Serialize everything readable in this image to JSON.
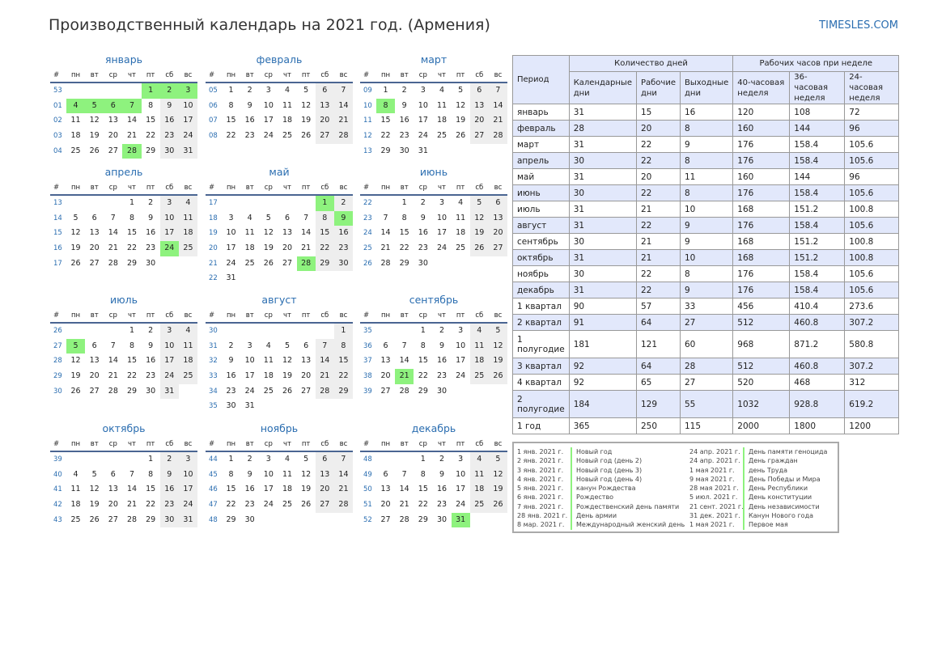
{
  "page": {
    "title": "Производственный календарь на 2021 год. (Армения)",
    "brand": "TIMESLES.COM"
  },
  "calendar": {
    "weekday_header": [
      "#",
      "пн",
      "вт",
      "ср",
      "чт",
      "пт",
      "сб",
      "вс"
    ],
    "months": [
      {
        "name": "январь",
        "rows": [
          {
            "wk": "53",
            "days": [
              "",
              "",
              "",
              "",
              "1",
              "2",
              "3"
            ]
          },
          {
            "wk": "01",
            "days": [
              "4",
              "5",
              "6",
              "7",
              "8",
              "9",
              "10"
            ]
          },
          {
            "wk": "02",
            "days": [
              "11",
              "12",
              "13",
              "14",
              "15",
              "16",
              "17"
            ]
          },
          {
            "wk": "03",
            "days": [
              "18",
              "19",
              "20",
              "21",
              "22",
              "23",
              "24"
            ]
          },
          {
            "wk": "04",
            "days": [
              "25",
              "26",
              "27",
              "28",
              "29",
              "30",
              "31"
            ]
          }
        ],
        "holidays": [
          "1",
          "2",
          "3",
          "4",
          "5",
          "6",
          "7",
          "28"
        ]
      },
      {
        "name": "февраль",
        "rows": [
          {
            "wk": "05",
            "days": [
              "1",
              "2",
              "3",
              "4",
              "5",
              "6",
              "7"
            ]
          },
          {
            "wk": "06",
            "days": [
              "8",
              "9",
              "10",
              "11",
              "12",
              "13",
              "14"
            ]
          },
          {
            "wk": "07",
            "days": [
              "15",
              "16",
              "17",
              "18",
              "19",
              "20",
              "21"
            ]
          },
          {
            "wk": "08",
            "days": [
              "22",
              "23",
              "24",
              "25",
              "26",
              "27",
              "28"
            ]
          }
        ],
        "holidays": []
      },
      {
        "name": "март",
        "rows": [
          {
            "wk": "09",
            "days": [
              "1",
              "2",
              "3",
              "4",
              "5",
              "6",
              "7"
            ]
          },
          {
            "wk": "10",
            "days": [
              "8",
              "9",
              "10",
              "11",
              "12",
              "13",
              "14"
            ]
          },
          {
            "wk": "11",
            "days": [
              "15",
              "16",
              "17",
              "18",
              "19",
              "20",
              "21"
            ]
          },
          {
            "wk": "12",
            "days": [
              "22",
              "23",
              "24",
              "25",
              "26",
              "27",
              "28"
            ]
          },
          {
            "wk": "13",
            "days": [
              "29",
              "30",
              "31",
              "",
              "",
              "",
              ""
            ]
          }
        ],
        "holidays": [
          "8"
        ]
      },
      {
        "name": "апрель",
        "rows": [
          {
            "wk": "13",
            "days": [
              "",
              "",
              "",
              "1",
              "2",
              "3",
              "4"
            ]
          },
          {
            "wk": "14",
            "days": [
              "5",
              "6",
              "7",
              "8",
              "9",
              "10",
              "11"
            ]
          },
          {
            "wk": "15",
            "days": [
              "12",
              "13",
              "14",
              "15",
              "16",
              "17",
              "18"
            ]
          },
          {
            "wk": "16",
            "days": [
              "19",
              "20",
              "21",
              "22",
              "23",
              "24",
              "25"
            ]
          },
          {
            "wk": "17",
            "days": [
              "26",
              "27",
              "28",
              "29",
              "30",
              "",
              ""
            ]
          }
        ],
        "holidays": [
          "24"
        ]
      },
      {
        "name": "май",
        "rows": [
          {
            "wk": "17",
            "days": [
              "",
              "",
              "",
              "",
              "",
              "1",
              "2"
            ]
          },
          {
            "wk": "18",
            "days": [
              "3",
              "4",
              "5",
              "6",
              "7",
              "8",
              "9"
            ]
          },
          {
            "wk": "19",
            "days": [
              "10",
              "11",
              "12",
              "13",
              "14",
              "15",
              "16"
            ]
          },
          {
            "wk": "20",
            "days": [
              "17",
              "18",
              "19",
              "20",
              "21",
              "22",
              "23"
            ]
          },
          {
            "wk": "21",
            "days": [
              "24",
              "25",
              "26",
              "27",
              "28",
              "29",
              "30"
            ]
          },
          {
            "wk": "22",
            "days": [
              "31",
              "",
              "",
              "",
              "",
              "",
              ""
            ]
          }
        ],
        "holidays": [
          "1",
          "9",
          "28"
        ]
      },
      {
        "name": "июнь",
        "rows": [
          {
            "wk": "22",
            "days": [
              "",
              "1",
              "2",
              "3",
              "4",
              "5",
              "6"
            ]
          },
          {
            "wk": "23",
            "days": [
              "7",
              "8",
              "9",
              "10",
              "11",
              "12",
              "13"
            ]
          },
          {
            "wk": "24",
            "days": [
              "14",
              "15",
              "16",
              "17",
              "18",
              "19",
              "20"
            ]
          },
          {
            "wk": "25",
            "days": [
              "21",
              "22",
              "23",
              "24",
              "25",
              "26",
              "27"
            ]
          },
          {
            "wk": "26",
            "days": [
              "28",
              "29",
              "30",
              "",
              "",
              "",
              ""
            ]
          }
        ],
        "holidays": []
      },
      {
        "name": "июль",
        "rows": [
          {
            "wk": "26",
            "days": [
              "",
              "",
              "",
              "1",
              "2",
              "3",
              "4"
            ]
          },
          {
            "wk": "27",
            "days": [
              "5",
              "6",
              "7",
              "8",
              "9",
              "10",
              "11"
            ]
          },
          {
            "wk": "28",
            "days": [
              "12",
              "13",
              "14",
              "15",
              "16",
              "17",
              "18"
            ]
          },
          {
            "wk": "29",
            "days": [
              "19",
              "20",
              "21",
              "22",
              "23",
              "24",
              "25"
            ]
          },
          {
            "wk": "30",
            "days": [
              "26",
              "27",
              "28",
              "29",
              "30",
              "31",
              ""
            ]
          }
        ],
        "holidays": [
          "5"
        ]
      },
      {
        "name": "август",
        "rows": [
          {
            "wk": "30",
            "days": [
              "",
              "",
              "",
              "",
              "",
              "",
              "1"
            ]
          },
          {
            "wk": "31",
            "days": [
              "2",
              "3",
              "4",
              "5",
              "6",
              "7",
              "8"
            ]
          },
          {
            "wk": "32",
            "days": [
              "9",
              "10",
              "11",
              "12",
              "13",
              "14",
              "15"
            ]
          },
          {
            "wk": "33",
            "days": [
              "16",
              "17",
              "18",
              "19",
              "20",
              "21",
              "22"
            ]
          },
          {
            "wk": "34",
            "days": [
              "23",
              "24",
              "25",
              "26",
              "27",
              "28",
              "29"
            ]
          },
          {
            "wk": "35",
            "days": [
              "30",
              "31",
              "",
              "",
              "",
              "",
              ""
            ]
          }
        ],
        "holidays": []
      },
      {
        "name": "сентябрь",
        "rows": [
          {
            "wk": "35",
            "days": [
              "",
              "",
              "1",
              "2",
              "3",
              "4",
              "5"
            ]
          },
          {
            "wk": "36",
            "days": [
              "6",
              "7",
              "8",
              "9",
              "10",
              "11",
              "12"
            ]
          },
          {
            "wk": "37",
            "days": [
              "13",
              "14",
              "15",
              "16",
              "17",
              "18",
              "19"
            ]
          },
          {
            "wk": "38",
            "days": [
              "20",
              "21",
              "22",
              "23",
              "24",
              "25",
              "26"
            ]
          },
          {
            "wk": "39",
            "days": [
              "27",
              "28",
              "29",
              "30",
              "",
              "",
              ""
            ]
          }
        ],
        "holidays": [
          "21"
        ]
      },
      {
        "name": "октябрь",
        "rows": [
          {
            "wk": "39",
            "days": [
              "",
              "",
              "",
              "",
              "1",
              "2",
              "3"
            ]
          },
          {
            "wk": "40",
            "days": [
              "4",
              "5",
              "6",
              "7",
              "8",
              "9",
              "10"
            ]
          },
          {
            "wk": "41",
            "days": [
              "11",
              "12",
              "13",
              "14",
              "15",
              "16",
              "17"
            ]
          },
          {
            "wk": "42",
            "days": [
              "18",
              "19",
              "20",
              "21",
              "22",
              "23",
              "24"
            ]
          },
          {
            "wk": "43",
            "days": [
              "25",
              "26",
              "27",
              "28",
              "29",
              "30",
              "31"
            ]
          }
        ],
        "holidays": []
      },
      {
        "name": "ноябрь",
        "rows": [
          {
            "wk": "44",
            "days": [
              "1",
              "2",
              "3",
              "4",
              "5",
              "6",
              "7"
            ]
          },
          {
            "wk": "45",
            "days": [
              "8",
              "9",
              "10",
              "11",
              "12",
              "13",
              "14"
            ]
          },
          {
            "wk": "46",
            "days": [
              "15",
              "16",
              "17",
              "18",
              "19",
              "20",
              "21"
            ]
          },
          {
            "wk": "47",
            "days": [
              "22",
              "23",
              "24",
              "25",
              "26",
              "27",
              "28"
            ]
          },
          {
            "wk": "48",
            "days": [
              "29",
              "30",
              "",
              "",
              "",
              "",
              ""
            ]
          }
        ],
        "holidays": []
      },
      {
        "name": "декабрь",
        "rows": [
          {
            "wk": "48",
            "days": [
              "",
              "",
              "1",
              "2",
              "3",
              "4",
              "5"
            ]
          },
          {
            "wk": "49",
            "days": [
              "6",
              "7",
              "8",
              "9",
              "10",
              "11",
              "12"
            ]
          },
          {
            "wk": "50",
            "days": [
              "13",
              "14",
              "15",
              "16",
              "17",
              "18",
              "19"
            ]
          },
          {
            "wk": "51",
            "days": [
              "20",
              "21",
              "22",
              "23",
              "24",
              "25",
              "26"
            ]
          },
          {
            "wk": "52",
            "days": [
              "27",
              "28",
              "29",
              "30",
              "31",
              "",
              ""
            ]
          }
        ],
        "holidays": [
          "31"
        ]
      }
    ]
  },
  "stats": {
    "header": {
      "period": "Период",
      "days_group": "Количество дней",
      "hours_group": "Рабочих часов при неделе",
      "cols": [
        "Календарные дни",
        "Рабочие дни",
        "Выходные дни",
        "40-часовая неделя",
        "36-часовая неделя",
        "24-часовая неделя"
      ]
    },
    "rows": [
      [
        "январь",
        "31",
        "15",
        "16",
        "120",
        "108",
        "72"
      ],
      [
        "февраль",
        "28",
        "20",
        "8",
        "160",
        "144",
        "96"
      ],
      [
        "март",
        "31",
        "22",
        "9",
        "176",
        "158.4",
        "105.6"
      ],
      [
        "апрель",
        "30",
        "22",
        "8",
        "176",
        "158.4",
        "105.6"
      ],
      [
        "май",
        "31",
        "20",
        "11",
        "160",
        "144",
        "96"
      ],
      [
        "июнь",
        "30",
        "22",
        "8",
        "176",
        "158.4",
        "105.6"
      ],
      [
        "июль",
        "31",
        "21",
        "10",
        "168",
        "151.2",
        "100.8"
      ],
      [
        "август",
        "31",
        "22",
        "9",
        "176",
        "158.4",
        "105.6"
      ],
      [
        "сентябрь",
        "30",
        "21",
        "9",
        "168",
        "151.2",
        "100.8"
      ],
      [
        "октябрь",
        "31",
        "21",
        "10",
        "168",
        "151.2",
        "100.8"
      ],
      [
        "ноябрь",
        "30",
        "22",
        "8",
        "176",
        "158.4",
        "105.6"
      ],
      [
        "декабрь",
        "31",
        "22",
        "9",
        "176",
        "158.4",
        "105.6"
      ],
      [
        "1 квартал",
        "90",
        "57",
        "33",
        "456",
        "410.4",
        "273.6"
      ],
      [
        "2 квартал",
        "91",
        "64",
        "27",
        "512",
        "460.8",
        "307.2"
      ],
      [
        "1 полугодие",
        "181",
        "121",
        "60",
        "968",
        "871.2",
        "580.8"
      ],
      [
        "3 квартал",
        "92",
        "64",
        "28",
        "512",
        "460.8",
        "307.2"
      ],
      [
        "4 квартал",
        "92",
        "65",
        "27",
        "520",
        "468",
        "312"
      ],
      [
        "2 полугодие",
        "184",
        "129",
        "55",
        "1032",
        "928.8",
        "619.2"
      ],
      [
        "1 год",
        "365",
        "250",
        "115",
        "2000",
        "1800",
        "1200"
      ]
    ]
  },
  "holidays_list": {
    "left": [
      {
        "date": "1 янв. 2021 г.",
        "name": "Новый год"
      },
      {
        "date": "2 янв. 2021 г.",
        "name": "Новый год (день 2)"
      },
      {
        "date": "3 янв. 2021 г.",
        "name": "Новый год (день 3)"
      },
      {
        "date": "4 янв. 2021 г.",
        "name": "Новый год (день 4)"
      },
      {
        "date": "5 янв. 2021 г.",
        "name": "канун Рождества"
      },
      {
        "date": "6 янв. 2021 г.",
        "name": "Рождество"
      },
      {
        "date": "7 янв. 2021 г.",
        "name": "Рождественский день памяти"
      },
      {
        "date": "28 янв. 2021 г.",
        "name": "День армии"
      },
      {
        "date": "8 мар. 2021 г.",
        "name": "Международный женский день"
      }
    ],
    "right": [
      {
        "date": "24 апр. 2021 г.",
        "name": "День памяти геноцида"
      },
      {
        "date": "24 апр. 2021 г.",
        "name": "День граждан"
      },
      {
        "date": "1 мая 2021 г.",
        "name": "день Труда"
      },
      {
        "date": "9 мая 2021 г.",
        "name": "День Победы и Мира"
      },
      {
        "date": "28 мая 2021 г.",
        "name": "День Республики"
      },
      {
        "date": "5 июл. 2021 г.",
        "name": "День конституции"
      },
      {
        "date": "21 сент. 2021 г.",
        "name": "День независимости"
      },
      {
        "date": "31 дек. 2021 г.",
        "name": "Канун Нового года"
      },
      {
        "date": "1 мая 2021 г.",
        "name": "Первое мая"
      }
    ]
  }
}
